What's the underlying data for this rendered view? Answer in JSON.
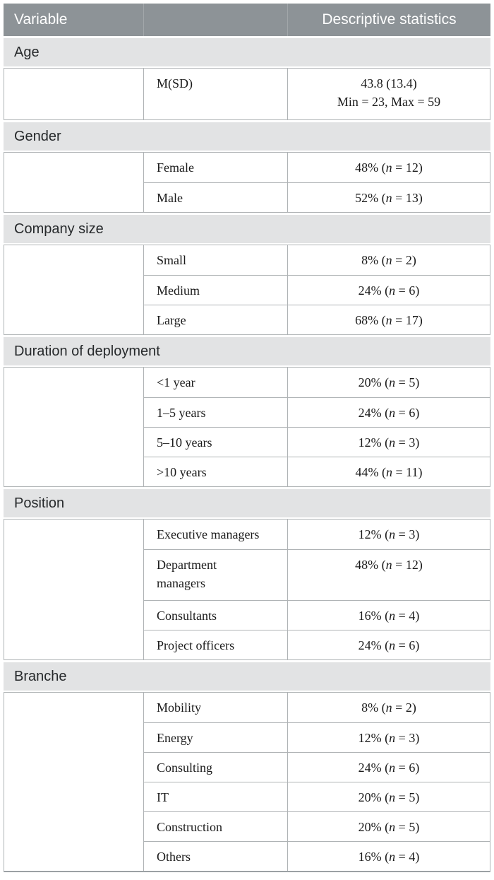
{
  "colors": {
    "header_bg": "#8D9397",
    "band_bg": "#E2E3E4",
    "border": "#AFB3B5",
    "heavy_rule": "#9BA1A4",
    "ink": "#1A1A1A",
    "band_ink": "#26292B",
    "header_ink": "#FFFFFF"
  },
  "table": {
    "header": {
      "col1": "Variable",
      "col2": "",
      "col3": "Descriptive statistics"
    },
    "sections": [
      {
        "title": "Age",
        "rows": [
          {
            "label": "M(SD)",
            "value": "43.8 (13.4)\nMin = 23, Max = 59"
          }
        ]
      },
      {
        "title": "Gender",
        "rows": [
          {
            "label": "Female",
            "value": {
              "pre": "48% (",
              "n": "n",
              "post": " = 12)"
            }
          },
          {
            "label": "Male",
            "value": {
              "pre": "52% (",
              "n": "n",
              "post": " = 13)"
            }
          }
        ]
      },
      {
        "title": "Company size",
        "rows": [
          {
            "label": "Small",
            "value": {
              "pre": "8% (",
              "n": "n",
              "post": " = 2)"
            }
          },
          {
            "label": "Medium",
            "value": {
              "pre": "24% (",
              "n": "n",
              "post": " = 6)"
            }
          },
          {
            "label": "Large",
            "value": {
              "pre": "68% (",
              "n": "n",
              "post": " = 17)"
            }
          }
        ]
      },
      {
        "title": "Duration of deployment",
        "rows": [
          {
            "label": "<1 year",
            "value": {
              "pre": "20% (",
              "n": "n",
              "post": " = 5)"
            }
          },
          {
            "label": "1–5 years",
            "value": {
              "pre": "24% (",
              "n": "n",
              "post": " = 6)"
            }
          },
          {
            "label": "5–10 years",
            "value": {
              "pre": "12% (",
              "n": "n",
              "post": " = 3)"
            }
          },
          {
            "label": ">10 years",
            "value": {
              "pre": "44% (",
              "n": "n",
              "post": " = 11)"
            }
          }
        ]
      },
      {
        "title": "Position",
        "rows": [
          {
            "label": "Executive managers",
            "value": {
              "pre": "12% (",
              "n": "n",
              "post": " = 3)"
            }
          },
          {
            "label": "Department\nmanagers",
            "value": {
              "pre": "48% (",
              "n": "n",
              "post": " = 12)"
            }
          },
          {
            "label": "Consultants",
            "value": {
              "pre": "16% (",
              "n": "n",
              "post": " = 4)"
            }
          },
          {
            "label": "Project officers",
            "value": {
              "pre": "24% (",
              "n": "n",
              "post": " = 6)"
            }
          }
        ]
      },
      {
        "title": "Branche",
        "rows": [
          {
            "label": "Mobility",
            "value": {
              "pre": "8% (",
              "n": "n",
              "post": " = 2)"
            }
          },
          {
            "label": "Energy",
            "value": {
              "pre": "12% (",
              "n": "n",
              "post": " = 3)"
            }
          },
          {
            "label": "Consulting",
            "value": {
              "pre": "24% (",
              "n": "n",
              "post": " = 6)"
            }
          },
          {
            "label": "IT",
            "value": {
              "pre": "20% (",
              "n": "n",
              "post": " = 5)"
            }
          },
          {
            "label": "Construction",
            "value": {
              "pre": "20% (",
              "n": "n",
              "post": " = 5)"
            }
          },
          {
            "label": "Others",
            "value": {
              "pre": "16% (",
              "n": "n",
              "post": " = 4)"
            }
          }
        ]
      }
    ]
  }
}
